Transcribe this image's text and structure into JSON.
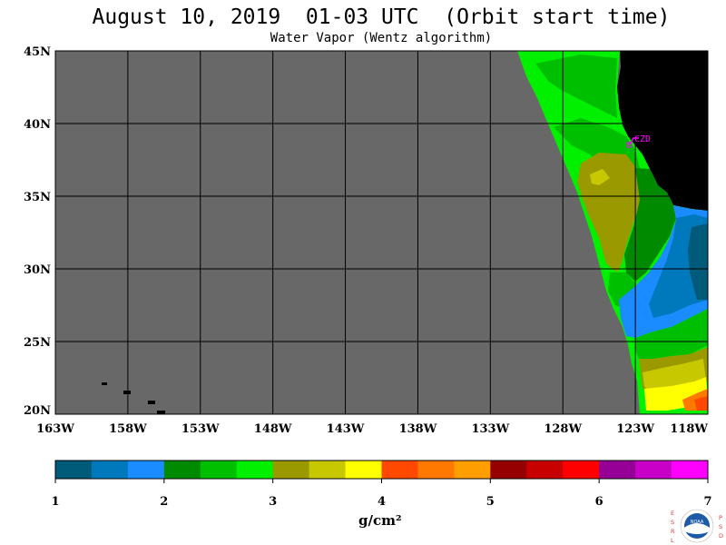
{
  "title": "August 10, 2019  01-03 UTC  (Orbit start time)",
  "subtitle": "Water Vapor (Wentz algorithm)",
  "map": {
    "lat_labels": [
      "45N",
      "40N",
      "35N",
      "30N",
      "25N",
      "20N"
    ],
    "lon_labels": [
      "163W",
      "158W",
      "153W",
      "148W",
      "143W",
      "138W",
      "133W",
      "128W",
      "123W",
      "118W"
    ],
    "lon_range": [
      -163,
      -118
    ],
    "lat_range": [
      20,
      45
    ],
    "station_label": "CZD",
    "colors": {
      "no_data": "#686868",
      "land": "#000000",
      "station": "#ff00ff"
    }
  },
  "colorbar": {
    "tick_labels": [
      "1",
      "2",
      "3",
      "4",
      "5",
      "6",
      "7"
    ],
    "unit": "g/cm²",
    "range": [
      1,
      7
    ],
    "colors": [
      "#005a7a",
      "#0078bc",
      "#1a8cff",
      "#008a00",
      "#00be00",
      "#00f000",
      "#9a9a00",
      "#c8c800",
      "#ffff00",
      "#ff4800",
      "#ff7800",
      "#ff9e00",
      "#960000",
      "#c80000",
      "#ff0000",
      "#960096",
      "#c800c8",
      "#ff00ff"
    ]
  },
  "logo": {
    "left_letters": "ESRL",
    "right_letters": "PSD",
    "center_text": "NOAA"
  }
}
